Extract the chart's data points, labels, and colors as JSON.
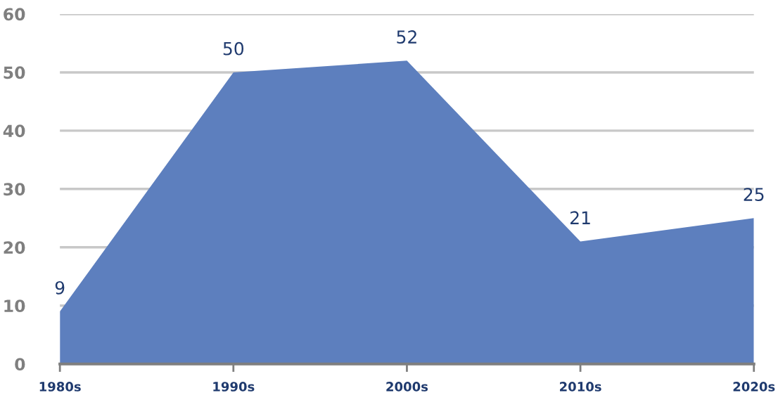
{
  "chart_data": {
    "type": "area",
    "categories": [
      "1980s",
      "1990s",
      "2000s",
      "2010s",
      "2020s"
    ],
    "series": [
      {
        "color": "#5d7fbe",
        "values": [
          9,
          50,
          52,
          21,
          25
        ]
      }
    ],
    "ylim": [
      0,
      60
    ],
    "yticks": [
      0,
      10,
      20,
      30,
      40,
      50,
      60
    ],
    "grid": "y",
    "data_labels": true
  }
}
